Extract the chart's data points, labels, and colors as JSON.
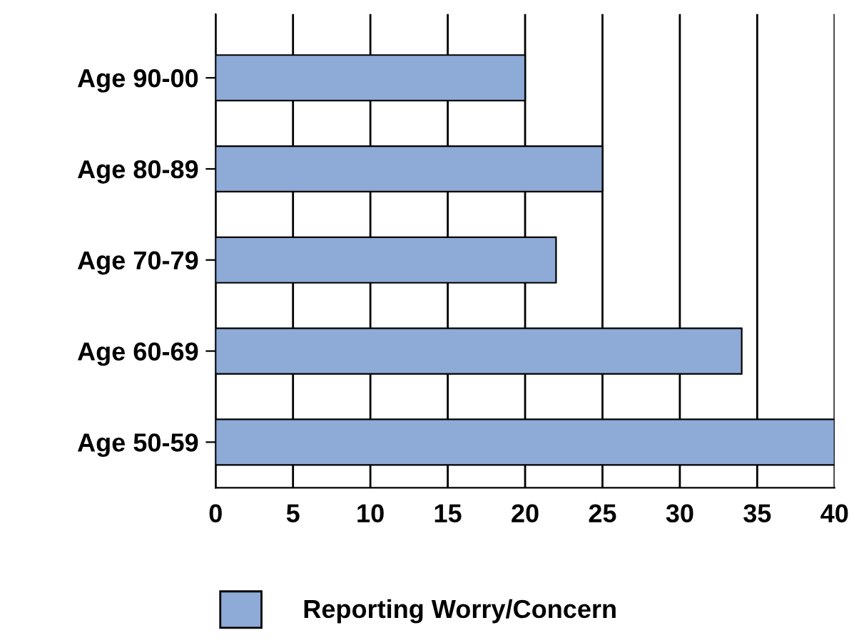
{
  "chart_data": {
    "type": "bar",
    "orientation": "horizontal",
    "categories": [
      "Age 90-00",
      "Age 80-89",
      "Age 70-79",
      "Age 60-69",
      "Age 50-59"
    ],
    "series": [
      {
        "name": "Reporting Worry/Concern",
        "color": "#8eaad6",
        "values": [
          20,
          25,
          22,
          34,
          40
        ]
      }
    ],
    "xlim": [
      0,
      40
    ],
    "xticks": [
      0,
      5,
      10,
      15,
      20,
      25,
      30,
      35,
      40
    ],
    "grid": "x",
    "legend": "bottom"
  }
}
